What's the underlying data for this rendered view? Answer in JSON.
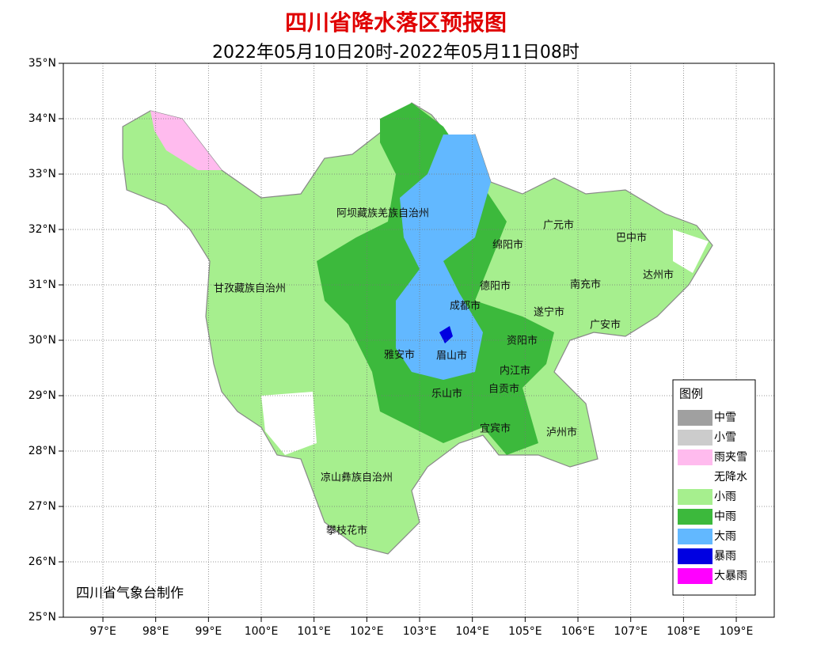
{
  "header": {
    "title": "四川省降水落区预报图",
    "subtitle": "2022年05月10日20时-2022年05月11日08时"
  },
  "axes": {
    "lat_ticks": [
      "35°N",
      "34°N",
      "33°N",
      "32°N",
      "31°N",
      "30°N",
      "29°N",
      "28°N",
      "27°N",
      "26°N",
      "25°N"
    ],
    "lon_ticks": [
      "97°E",
      "98°E",
      "99°E",
      "100°E",
      "101°E",
      "102°E",
      "103°E",
      "104°E",
      "105°E",
      "106°E",
      "107°E",
      "108°E",
      "109°E"
    ]
  },
  "cities": [
    "阿坝藏族羌族自治州",
    "广元市",
    "绵阳市",
    "巴中市",
    "达州市",
    "甘孜藏族自治州",
    "德阳市",
    "南充市",
    "成都市",
    "遂宁市",
    "广安市",
    "资阳市",
    "雅安市",
    "眉山市",
    "内江市",
    "乐山市",
    "自贡市",
    "宜宾市",
    "泸州市",
    "凉山彝族自治州",
    "攀枝花市"
  ],
  "legend": {
    "title": "图例",
    "items": [
      {
        "label": "中雪",
        "color": "#a0a0a0"
      },
      {
        "label": "小雪",
        "color": "#cccccc"
      },
      {
        "label": "雨夹雪",
        "color": "#ffbbee"
      },
      {
        "label": "无降水",
        "color": "#ffffff"
      },
      {
        "label": "小雨",
        "color": "#a6ef8e"
      },
      {
        "label": "中雨",
        "color": "#3cb93c"
      },
      {
        "label": "大雨",
        "color": "#62b8ff"
      },
      {
        "label": "暴雨",
        "color": "#0000e1"
      },
      {
        "label": "大暴雨",
        "color": "#ff00ff"
      }
    ]
  },
  "footer": "四川省气象台制作"
}
